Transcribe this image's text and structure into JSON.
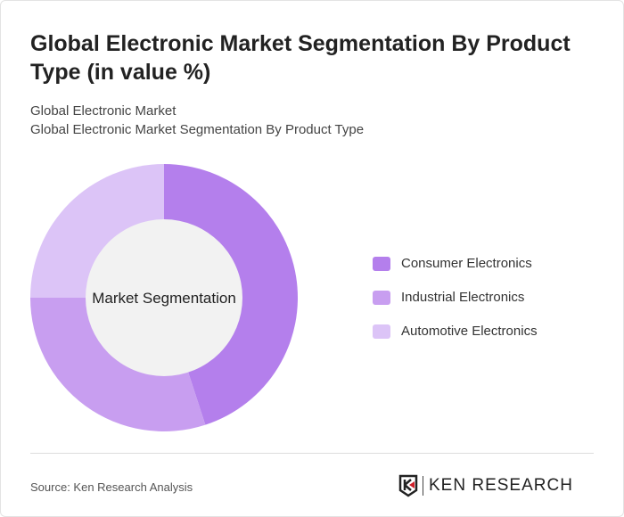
{
  "title": "Global Electronic Market Segmentation By Product Type (in value %)",
  "subtitle1": "Global Electronic Market",
  "subtitle2": "Global Electronic Market Segmentation By Product Type",
  "source": "Source: Ken Research Analysis",
  "logo_text": "KEN RESEARCH",
  "chart_data": {
    "type": "pie",
    "variant": "donut",
    "center_label": "Market Segmentation",
    "categories": [
      "Consumer Electronics",
      "Industrial Electronics",
      "Automotive Electronics"
    ],
    "values": [
      45,
      30,
      25
    ],
    "colors": [
      "#b47fec",
      "#c89ef0",
      "#dcc4f7"
    ],
    "legend": "right"
  }
}
